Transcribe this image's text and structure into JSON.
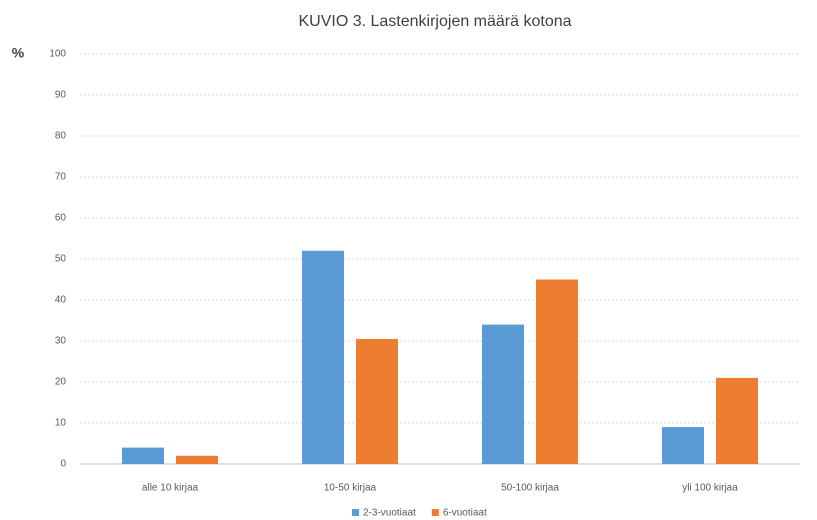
{
  "chart_data": {
    "type": "bar",
    "title": "KUVIO 3. Lastenkirjojen määrä kotona",
    "y_label": "%",
    "categories": [
      "alle 10 kirjaa",
      "10-50 kirjaa",
      "50-100 kirjaa",
      "yli 100 kirjaa"
    ],
    "series": [
      {
        "name": "2-3-vuotiaat",
        "color": "#5b9bd5",
        "values": [
          4,
          52,
          34,
          9
        ]
      },
      {
        "name": "6-vuotiaat",
        "color": "#ed7d31",
        "values": [
          2,
          30.5,
          45,
          21
        ]
      }
    ],
    "ylim": [
      0,
      100
    ],
    "yticks": [
      0,
      10,
      20,
      30,
      40,
      50,
      60,
      70,
      80,
      90,
      100
    ],
    "grid": true,
    "legend": "bottom"
  }
}
